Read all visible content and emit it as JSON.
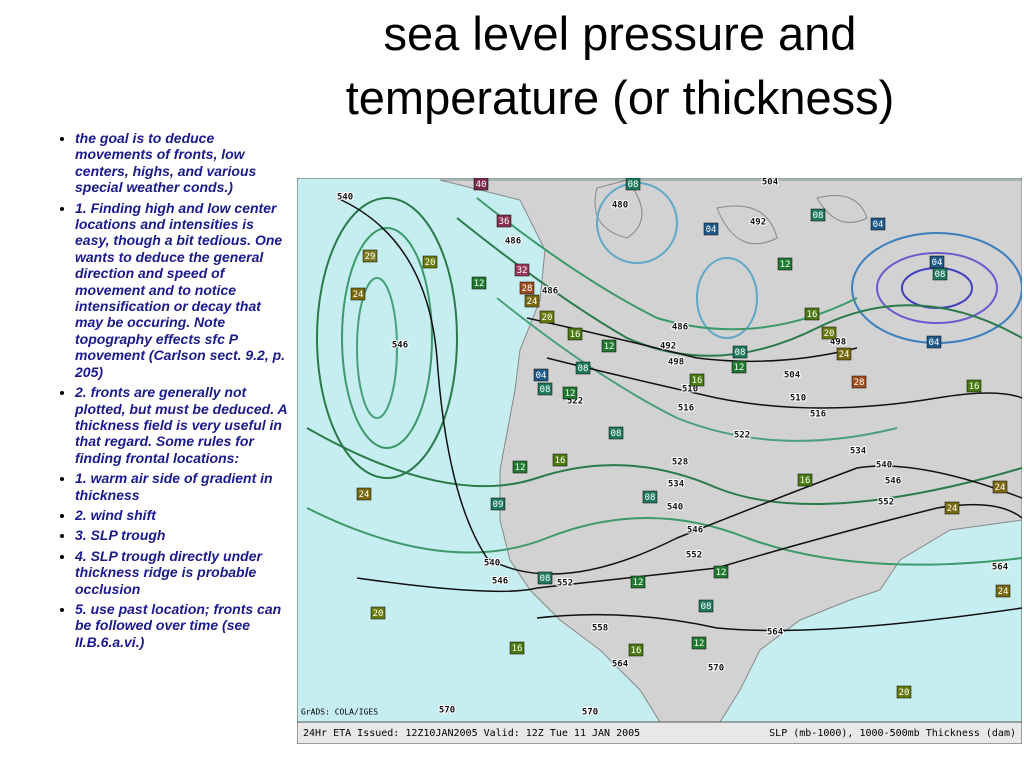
{
  "slide": {
    "title": {
      "lines": [
        "sea level pressure and",
        "temperature (or thickness)"
      ]
    },
    "bullets": [
      "the goal is to deduce movements of fronts, low centers, highs, and various special weather conds.)",
      "1. Finding high and low center locations and intensities is easy, though a bit tedious. One wants to deduce the general direction and speed of movement and to notice intensification or decay that may be occuring. Note topography effects sfc P movement (Carlson sect. 9.2, p. 205)",
      "2. fronts are generally not plotted, but must be deduced. A thickness field is very useful in that regard. Some rules for finding frontal locations:",
      "1. warm air side of gradient in thickness",
      "2. wind shift",
      "3. SLP trough",
      "4. SLP trough directly under thickness ridge is probable occlusion",
      "5. use past location; fronts can be followed over time (see II.B.6.a.vi.)"
    ],
    "map": {
      "credit": "GrADS: COLA/IGES",
      "caption_left": "24Hr ETA Issued: 12Z10JAN2005 Valid: 12Z Tue 11 JAN 2005",
      "caption_right": "SLP (mb-1000), 1000-500mb Thickness (dam)",
      "thickness_labels": [
        "540",
        "546",
        "540",
        "546",
        "552",
        "558",
        "564",
        "570",
        "570",
        "570",
        "564",
        "552",
        "546",
        "540",
        "534",
        "528",
        "522",
        "516",
        "510",
        "498",
        "492",
        "486",
        "486",
        "486",
        "480",
        "492",
        "504",
        "522",
        "510",
        "516",
        "504",
        "498",
        "534",
        "540",
        "546",
        "552",
        "564"
      ],
      "pressure_labels": [
        "29",
        "20",
        "24",
        "24",
        "20",
        "40",
        "36",
        "32",
        "28",
        "24",
        "20",
        "16",
        "12",
        "12",
        "08",
        "04",
        "12",
        "08",
        "04",
        "04",
        "08",
        "04",
        "16",
        "20",
        "24",
        "28",
        "16",
        "24",
        "24",
        "24",
        "20",
        "16",
        "12",
        "08",
        "04",
        "08",
        "12",
        "08",
        "08",
        "16",
        "12",
        "09",
        "08",
        "08",
        "12",
        "12",
        "08",
        "12",
        "16",
        "16",
        "16"
      ]
    }
  }
}
